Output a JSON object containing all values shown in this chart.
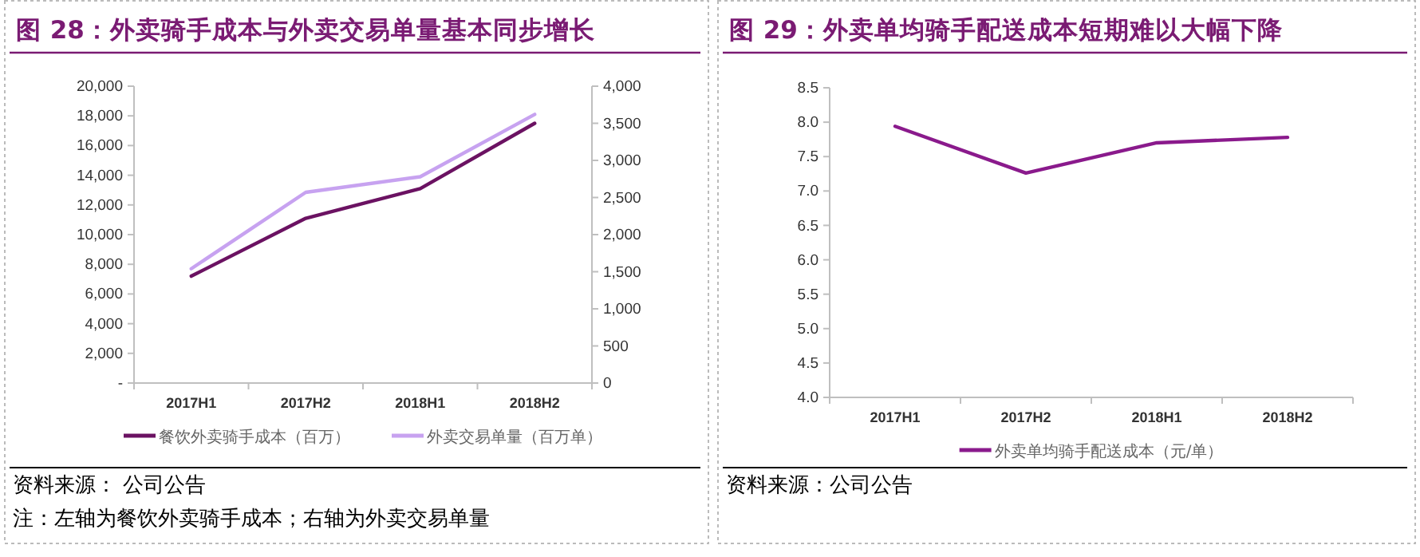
{
  "chart_data": [
    {
      "type": "line",
      "title": "图 28：外卖骑手成本与外卖交易单量基本同步增长",
      "categories": [
        "2017H1",
        "2017H2",
        "2018H1",
        "2018H2"
      ],
      "series": [
        {
          "name": "餐饮外卖骑手成本（百万）",
          "color": "#6b1262",
          "values": [
            7200,
            11100,
            13100,
            17500
          ]
        },
        {
          "name": "外卖交易单量（百万单）",
          "color": "#c7a2f0",
          "values": [
            1540,
            2570,
            2780,
            3620
          ],
          "axis": "y2"
        }
      ],
      "ylim": [
        0,
        20000
      ],
      "yticks": [
        {
          "value": 0,
          "label": "-"
        },
        {
          "value": 2000,
          "label": "2,000"
        },
        {
          "value": 4000,
          "label": "4,000"
        },
        {
          "value": 6000,
          "label": "6,000"
        },
        {
          "value": 8000,
          "label": "8,000"
        },
        {
          "value": 10000,
          "label": "10,000"
        },
        {
          "value": 12000,
          "label": "12,000"
        },
        {
          "value": 14000,
          "label": "14,000"
        },
        {
          "value": 16000,
          "label": "16,000"
        },
        {
          "value": 18000,
          "label": "18,000"
        },
        {
          "value": 20000,
          "label": "20,000"
        }
      ],
      "y2lim": [
        0,
        4000
      ],
      "y2ticks": [
        0,
        500,
        {
          "value": 1000,
          "label": "1,000"
        },
        {
          "value": 1500,
          "label": "1,500"
        },
        {
          "value": 2000,
          "label": "2,000"
        },
        {
          "value": 2500,
          "label": "2,500"
        },
        {
          "value": 3000,
          "label": "3,000"
        },
        {
          "value": 3500,
          "label": "3,500"
        },
        {
          "value": 4000,
          "label": "4,000"
        }
      ],
      "legend": "bottom",
      "grid": false,
      "annotations": [
        "资料来源： 公司公告",
        "注：左轴为餐饮外卖骑手成本；右轴为外卖交易单量"
      ]
    },
    {
      "type": "line",
      "title": "图 29：外卖单均骑手配送成本短期难以大幅下降",
      "categories": [
        "2017H1",
        "2017H2",
        "2018H1",
        "2018H2"
      ],
      "series": [
        {
          "name": "外卖单均骑手配送成本（元/单）",
          "color": "#8a1a8c",
          "values": [
            7.94,
            7.26,
            7.7,
            7.78
          ]
        }
      ],
      "ylim": [
        4,
        8.5
      ],
      "yticks": [
        {
          "value": 4,
          "label": "4.0"
        },
        {
          "value": 4.5,
          "label": "4.5"
        },
        {
          "value": 5,
          "label": "5.0"
        },
        {
          "value": 5.5,
          "label": "5.5"
        },
        {
          "value": 6,
          "label": "6.0"
        },
        {
          "value": 6.5,
          "label": "6.5"
        },
        {
          "value": 7,
          "label": "7.0"
        },
        {
          "value": 7.5,
          "label": "7.5"
        },
        {
          "value": 8,
          "label": "8.0"
        },
        {
          "value": 8.5,
          "label": "8.5"
        }
      ],
      "legend": "bottom",
      "grid": false,
      "annotations": [
        "资料来源：公司公告"
      ]
    }
  ]
}
